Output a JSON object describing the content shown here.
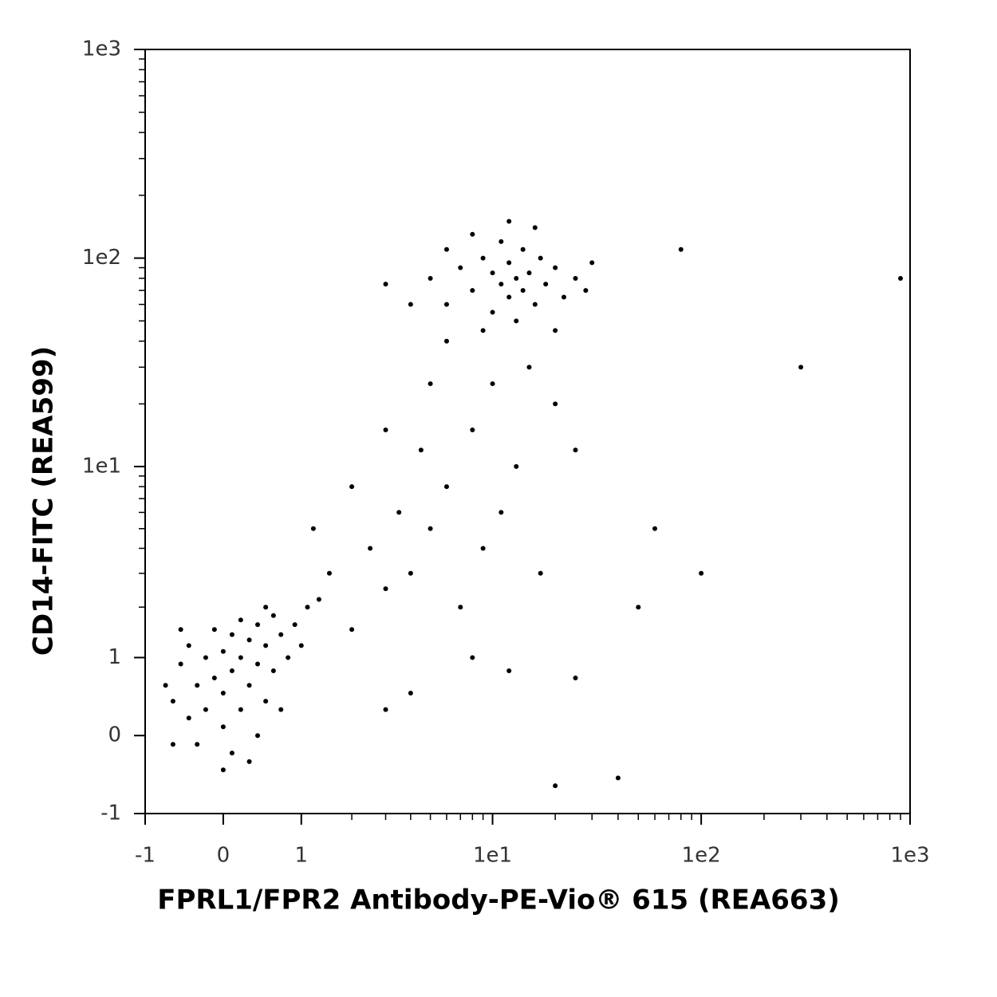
{
  "chart_data": {
    "type": "scatter",
    "x_label": "FPRL1/FPR2 Antibody-PE-Vio® 615 (REA663)",
    "y_label": "CD14-FITC (REA599)",
    "xscale": "biexponential",
    "yscale": "biexponential",
    "color": "#000000",
    "xlim": [
      -1,
      1000
    ],
    "ylim": [
      -1,
      1000
    ],
    "xticks": [
      -1,
      0,
      1,
      {
        "value": 10,
        "label": "1e1"
      },
      {
        "value": 100,
        "label": "1e2"
      },
      {
        "value": 1000,
        "label": "1e3"
      }
    ],
    "yticks": [
      -1,
      0,
      1,
      {
        "value": 10,
        "label": "1e1"
      },
      {
        "value": 100,
        "label": "1e2"
      },
      {
        "value": 1000,
        "label": "1e3"
      }
    ],
    "xminorticks": [
      2,
      3,
      4,
      5,
      6,
      7,
      8,
      9,
      20,
      30,
      40,
      50,
      60,
      70,
      80,
      90,
      200,
      300,
      400,
      500,
      600,
      700,
      800,
      900
    ],
    "yminorticks": [
      2,
      3,
      4,
      5,
      6,
      7,
      8,
      9,
      20,
      30,
      40,
      50,
      60,
      70,
      80,
      90,
      200,
      300,
      400,
      500,
      600,
      700,
      800,
      900
    ],
    "x": [
      -0.6,
      -0.5,
      -0.4,
      -0.4,
      -0.3,
      -0.3,
      -0.2,
      -0.2,
      -0.1,
      -0.1,
      0,
      0,
      0,
      0.1,
      0.1,
      0.1,
      0.2,
      0.2,
      0.2,
      0.3,
      0.3,
      0.4,
      0.4,
      0.4,
      0.5,
      0.5,
      0.6,
      0.6,
      0.7,
      0.7,
      0.8,
      0.9,
      -0.7,
      -0.6,
      0,
      0.3,
      1.0,
      1.1,
      -0.5,
      0.5,
      1.3,
      1.5,
      2,
      2.5,
      3,
      3.5,
      4,
      4.5,
      5,
      6,
      7,
      8,
      9,
      10,
      11,
      13,
      15,
      17,
      20,
      25,
      2,
      3,
      5,
      1.2,
      6,
      4,
      8,
      12,
      25,
      3,
      5,
      6,
      7,
      8,
      9,
      10,
      10,
      11,
      11,
      12,
      12,
      13,
      13,
      14,
      14,
      15,
      16,
      17,
      18,
      20,
      22,
      25,
      28,
      4,
      3,
      6,
      8,
      12,
      16,
      9,
      20,
      30,
      60,
      100,
      300,
      900,
      40,
      20,
      50,
      80
    ],
    "values": [
      0.4,
      0.9,
      0.2,
      1.2,
      0.6,
      -0.1,
      1.0,
      0.3,
      1.5,
      0.7,
      0.1,
      1.1,
      0.5,
      1.4,
      0.8,
      -0.2,
      0.3,
      1.7,
      1.0,
      0.6,
      1.3,
      0,
      0.9,
      1.6,
      0.4,
      1.2,
      0.8,
      1.8,
      0.3,
      1.4,
      1.0,
      1.6,
      0.6,
      -0.1,
      -0.4,
      -0.3,
      1.2,
      2.0,
      1.5,
      2.0,
      2.2,
      3,
      1.5,
      4,
      2.5,
      6,
      3,
      12,
      5,
      8,
      2,
      15,
      4,
      25,
      6,
      10,
      30,
      3,
      20,
      12,
      8,
      15,
      25,
      5,
      40,
      0.5,
      1,
      0.8,
      0.7,
      0.3,
      80,
      60,
      90,
      70,
      100,
      55,
      85,
      75,
      120,
      65,
      95,
      80,
      50,
      110,
      70,
      85,
      60,
      100,
      75,
      90,
      65,
      80,
      70,
      60,
      75,
      110,
      130,
      150,
      140,
      45,
      45,
      95,
      5,
      3,
      30,
      80,
      -0.5,
      -0.6,
      2,
      110
    ]
  }
}
